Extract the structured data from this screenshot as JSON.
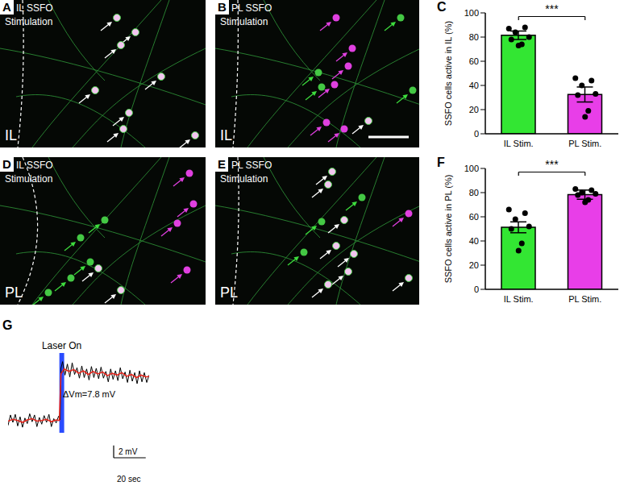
{
  "images": [
    {
      "panel_label": "A",
      "caption": [
        "IL SSFO",
        "Stimulation"
      ],
      "region": "IL"
    },
    {
      "panel_label": "B",
      "caption": [
        "PL SSFO",
        "Stimulation"
      ],
      "region": "IL"
    },
    {
      "panel_label": "D",
      "caption": [
        "IL SSFO",
        "Stimulation"
      ],
      "region": "PL"
    },
    {
      "panel_label": "E",
      "caption": [
        "PL SSFO",
        "Stimulation"
      ],
      "region": "PL"
    }
  ],
  "chart_data": [
    {
      "type": "bar",
      "panel_label": "C",
      "categories": [
        "IL Stim.",
        "PL Stim."
      ],
      "values": [
        81.5,
        32.5
      ],
      "errors": [
        3.5,
        6.2
      ],
      "points": [
        [
          87,
          88,
          84,
          80,
          78,
          74,
          73
        ],
        [
          46,
          44,
          40,
          33,
          32,
          19,
          14
        ]
      ],
      "colors": [
        "#33e633",
        "#e83ee8"
      ],
      "ylabel": "SSFO cells active in IL (%)",
      "ylim": [
        0,
        100
      ],
      "yticks": [
        0,
        20,
        40,
        60,
        80,
        100
      ],
      "significance": "***"
    },
    {
      "type": "bar",
      "panel_label": "F",
      "categories": [
        "IL Stim.",
        "PL Stim."
      ],
      "values": [
        51.3,
        78.3
      ],
      "errors": [
        4.5,
        3.8
      ],
      "points": [
        [
          66,
          63,
          58,
          52,
          50,
          38,
          32
        ],
        [
          83,
          82,
          80,
          79,
          78,
          74,
          72
        ]
      ],
      "colors": [
        "#33e633",
        "#e83ee8"
      ],
      "ylabel": "SSFO cells active in PL (%)",
      "ylim": [
        0,
        100
      ],
      "yticks": [
        0,
        20,
        40,
        60,
        80,
        100
      ],
      "significance": "***"
    },
    {
      "type": "line",
      "panel_label": "G",
      "xlim": [
        0,
        88
      ],
      "ylim": [
        -2,
        11
      ],
      "tick_labels": false,
      "series": [
        {
          "color": "#000000",
          "x": [
            0,
            1.5,
            3,
            4.5,
            6,
            7.5,
            9,
            10.5,
            12,
            13.5,
            15,
            16.5,
            18,
            19.5,
            21,
            22.5,
            24,
            25.5,
            27,
            28.5,
            30,
            31.5,
            32.5,
            33,
            34,
            35.5,
            37,
            38.5,
            40,
            41.5,
            43,
            44.5,
            46,
            47.5,
            49,
            50.5,
            52,
            53.5,
            55,
            56.5,
            58,
            59.5,
            61,
            62.5,
            64,
            65.5,
            67,
            68.5,
            70,
            71.5,
            73,
            74.5,
            76,
            77.5,
            79,
            80.5,
            82,
            83.5,
            85,
            86.5,
            88
          ],
          "values": [
            -0.8,
            0.9,
            -0.3,
            1.0,
            -0.9,
            0.6,
            -1.1,
            0.4,
            -0.5,
            1.1,
            -0.2,
            0.9,
            -1.0,
            0.5,
            -0.6,
            0.8,
            -0.3,
            1.0,
            -1.0,
            0.3,
            -0.4,
            0.7,
            0.1,
            8.5,
            9.6,
            7.4,
            9.2,
            7.1,
            9.4,
            7.5,
            8.6,
            6.9,
            8.9,
            7.0,
            8.4,
            6.6,
            8.8,
            7.0,
            8.5,
            6.8,
            8.7,
            6.9,
            8.0,
            6.3,
            8.4,
            6.7,
            8.1,
            6.5,
            8.6,
            6.8,
            7.9,
            6.2,
            8.2,
            6.4,
            7.8,
            6.0,
            8.1,
            6.3,
            7.8,
            6.2,
            7.4
          ]
        },
        {
          "color": "#e8251c",
          "x": [
            0,
            3,
            6,
            9,
            12,
            15,
            18,
            21,
            24,
            27,
            30,
            32,
            33,
            35,
            38,
            41,
            44,
            47,
            50,
            53,
            56,
            59,
            62,
            65,
            68,
            71,
            74,
            77,
            80,
            83,
            86,
            88
          ],
          "values": [
            -0.1,
            0.2,
            0.0,
            -0.3,
            0.1,
            0.3,
            -0.1,
            0.0,
            0.2,
            -0.2,
            0.1,
            0.0,
            7.6,
            8.4,
            8.0,
            8.3,
            7.7,
            8.1,
            7.5,
            8.0,
            7.6,
            7.9,
            7.3,
            7.7,
            7.4,
            7.8,
            7.2,
            7.5,
            7.0,
            7.4,
            7.1,
            7.2
          ]
        }
      ],
      "laser": {
        "label": "Laser On",
        "start": 32,
        "end": 35
      },
      "annotation": "ΔVm=7.8 mV",
      "scale_bars": [
        {
          "axis": "y",
          "value": 2,
          "label": "2 mV"
        },
        {
          "axis": "x",
          "value": 20,
          "label": "20 sec"
        }
      ]
    }
  ]
}
